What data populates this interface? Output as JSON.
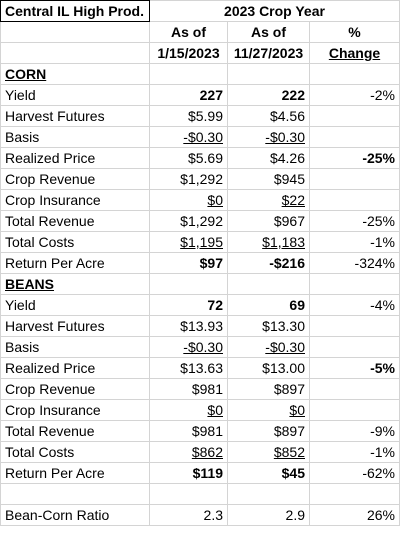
{
  "header": {
    "title": "Central IL High Prod.",
    "crop_year": "2023 Crop Year",
    "col1_top": "As of",
    "col1_bottom": "1/15/2023",
    "col2_top": "As of",
    "col2_bottom": "11/27/2023",
    "col3_top": "%",
    "col3_bottom": "Change"
  },
  "corn": {
    "section": "CORN",
    "rows": [
      {
        "label": "Yield",
        "v1": "227",
        "v2": "222",
        "chg": "-2%"
      },
      {
        "label": "Harvest Futures",
        "v1": "$5.99",
        "v2": "$4.56",
        "chg": ""
      },
      {
        "label": "Basis",
        "v1": "-$0.30",
        "v2": "-$0.30",
        "chg": ""
      },
      {
        "label": "Realized Price",
        "v1": "$5.69",
        "v2": "$4.26",
        "chg": "-25%"
      },
      {
        "label": "Crop Revenue",
        "v1": "$1,292",
        "v2": "$945",
        "chg": ""
      },
      {
        "label": "Crop Insurance",
        "v1": "$0",
        "v2": "$22",
        "chg": ""
      },
      {
        "label": "Total Revenue",
        "v1": "$1,292",
        "v2": "$967",
        "chg": "-25%"
      },
      {
        "label": "Total Costs",
        "v1": "$1,195",
        "v2": "$1,183",
        "chg": "-1%"
      },
      {
        "label": "Return Per Acre",
        "v1": "$97",
        "v2": "-$216",
        "chg": "-324%"
      }
    ]
  },
  "beans": {
    "section": "BEANS",
    "rows": [
      {
        "label": "Yield",
        "v1": "72",
        "v2": "69",
        "chg": "-4%"
      },
      {
        "label": "Harvest Futures",
        "v1": "$13.93",
        "v2": "$13.30",
        "chg": ""
      },
      {
        "label": "Basis",
        "v1": "-$0.30",
        "v2": "-$0.30",
        "chg": ""
      },
      {
        "label": "Realized Price",
        "v1": "$13.63",
        "v2": "$13.00",
        "chg": "-5%"
      },
      {
        "label": "Crop Revenue",
        "v1": "$981",
        "v2": "$897",
        "chg": ""
      },
      {
        "label": "Crop Insurance",
        "v1": "$0",
        "v2": "$0",
        "chg": ""
      },
      {
        "label": "Total Revenue",
        "v1": "$981",
        "v2": "$897",
        "chg": "-9%"
      },
      {
        "label": "Total Costs",
        "v1": "$862",
        "v2": "$852",
        "chg": "-1%"
      },
      {
        "label": "Return Per Acre",
        "v1": "$119",
        "v2": "$45",
        "chg": "-62%"
      }
    ]
  },
  "ratio": {
    "label": "Bean-Corn Ratio",
    "v1": "2.3",
    "v2": "2.9",
    "chg": "26%"
  }
}
